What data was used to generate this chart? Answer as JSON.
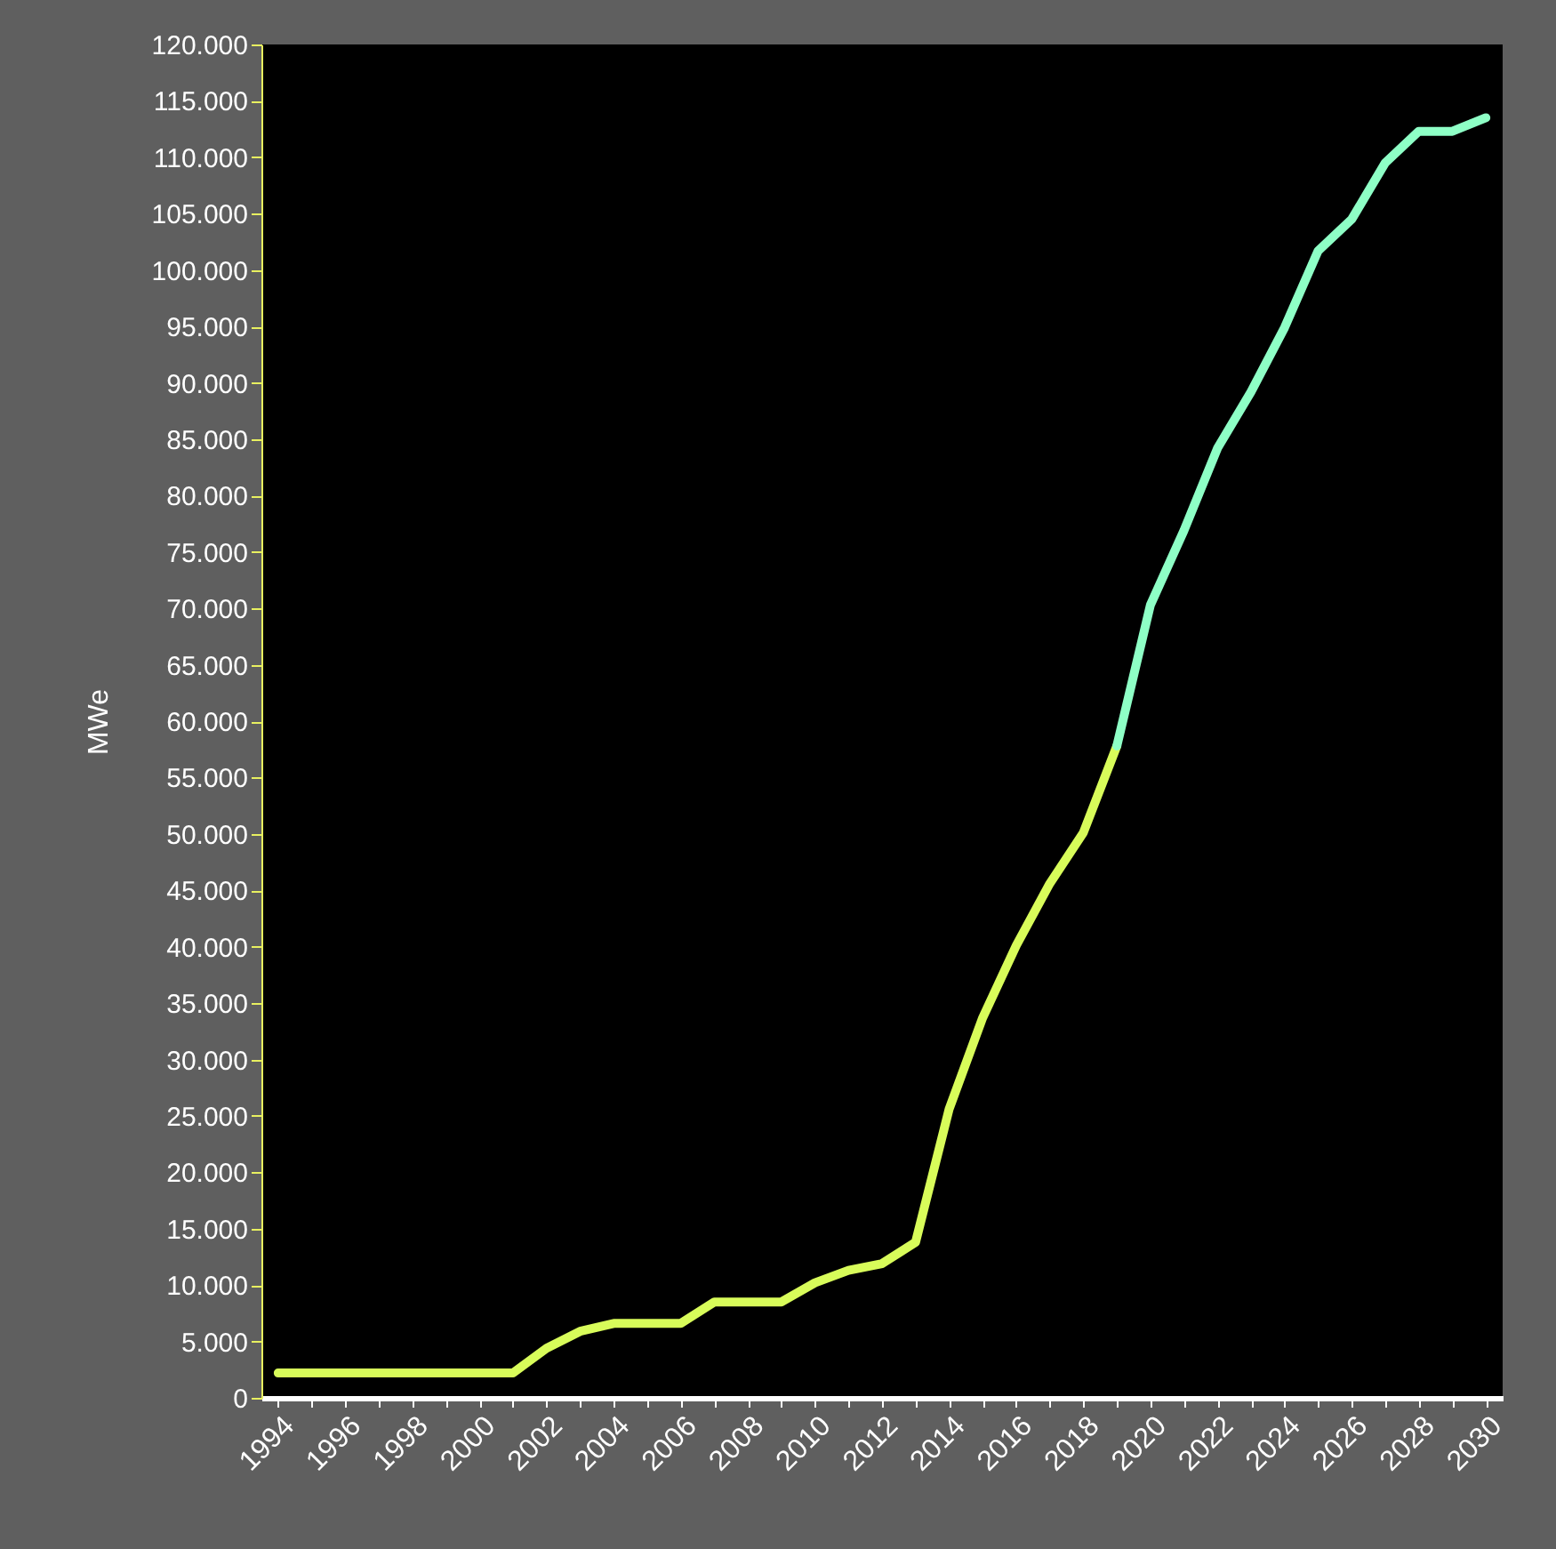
{
  "chart_data": {
    "type": "line",
    "ylabel": "MWe",
    "categories": [
      "1994",
      null,
      "1996",
      null,
      "1998",
      null,
      "2000",
      null,
      "2002",
      null,
      "2004",
      null,
      "2006",
      null,
      "2008",
      null,
      "2010",
      null,
      "2012",
      null,
      "2014",
      null,
      "2016",
      null,
      "2018",
      null,
      "2020",
      null,
      "2022",
      null,
      "2024",
      null,
      "2026",
      null,
      "2028",
      null,
      "2030"
    ],
    "series": [
      {
        "color": "#d8fc5a",
        "values": [
          2200,
          2200,
          2200,
          2200,
          2200,
          2200,
          2200,
          2200,
          4400,
          5900,
          6600,
          6600,
          6600,
          8500,
          8500,
          8500,
          10200,
          11300,
          11900,
          13800,
          25600,
          33700,
          40100,
          45600,
          50100,
          57800,
          null,
          null,
          null,
          null,
          null,
          null,
          null,
          null,
          null,
          null,
          null
        ]
      },
      {
        "color": "#8effc6",
        "values": [
          null,
          null,
          null,
          null,
          null,
          null,
          null,
          null,
          null,
          null,
          null,
          null,
          null,
          null,
          null,
          null,
          null,
          null,
          null,
          null,
          null,
          null,
          null,
          null,
          null,
          57800,
          70300,
          76900,
          84200,
          89200,
          94900,
          101700,
          104500,
          109500,
          112300,
          112300,
          113500
        ]
      }
    ],
    "ylim": [
      0,
      120000
    ],
    "yticks": [
      0,
      {
        "value": 5000,
        "label": "5.000"
      },
      {
        "value": 10000,
        "label": "10.000"
      },
      {
        "value": 15000,
        "label": "15.000"
      },
      {
        "value": 20000,
        "label": "20.000"
      },
      {
        "value": 25000,
        "label": "25.000"
      },
      {
        "value": 30000,
        "label": "30.000"
      },
      {
        "value": 35000,
        "label": "35.000"
      },
      {
        "value": 40000,
        "label": "40.000"
      },
      {
        "value": 45000,
        "label": "45.000"
      },
      {
        "value": 50000,
        "label": "50.000"
      },
      {
        "value": 55000,
        "label": "55.000"
      },
      {
        "value": 60000,
        "label": "60.000"
      },
      {
        "value": 65000,
        "label": "65.000"
      },
      {
        "value": 70000,
        "label": "70.000"
      },
      {
        "value": 75000,
        "label": "75.000"
      },
      {
        "value": 80000,
        "label": "80.000"
      },
      {
        "value": 85000,
        "label": "85.000"
      },
      {
        "value": 90000,
        "label": "90.000"
      },
      {
        "value": 95000,
        "label": "95.000"
      },
      {
        "value": 100000,
        "label": "100.000"
      },
      {
        "value": 105000,
        "label": "105.000"
      },
      {
        "value": 110000,
        "label": "110.000"
      },
      {
        "value": 115000,
        "label": "115.000"
      },
      {
        "value": 120000,
        "label": "120.000"
      }
    ],
    "grid": false,
    "legend": false,
    "marker": "none",
    "line_style": "solid"
  }
}
